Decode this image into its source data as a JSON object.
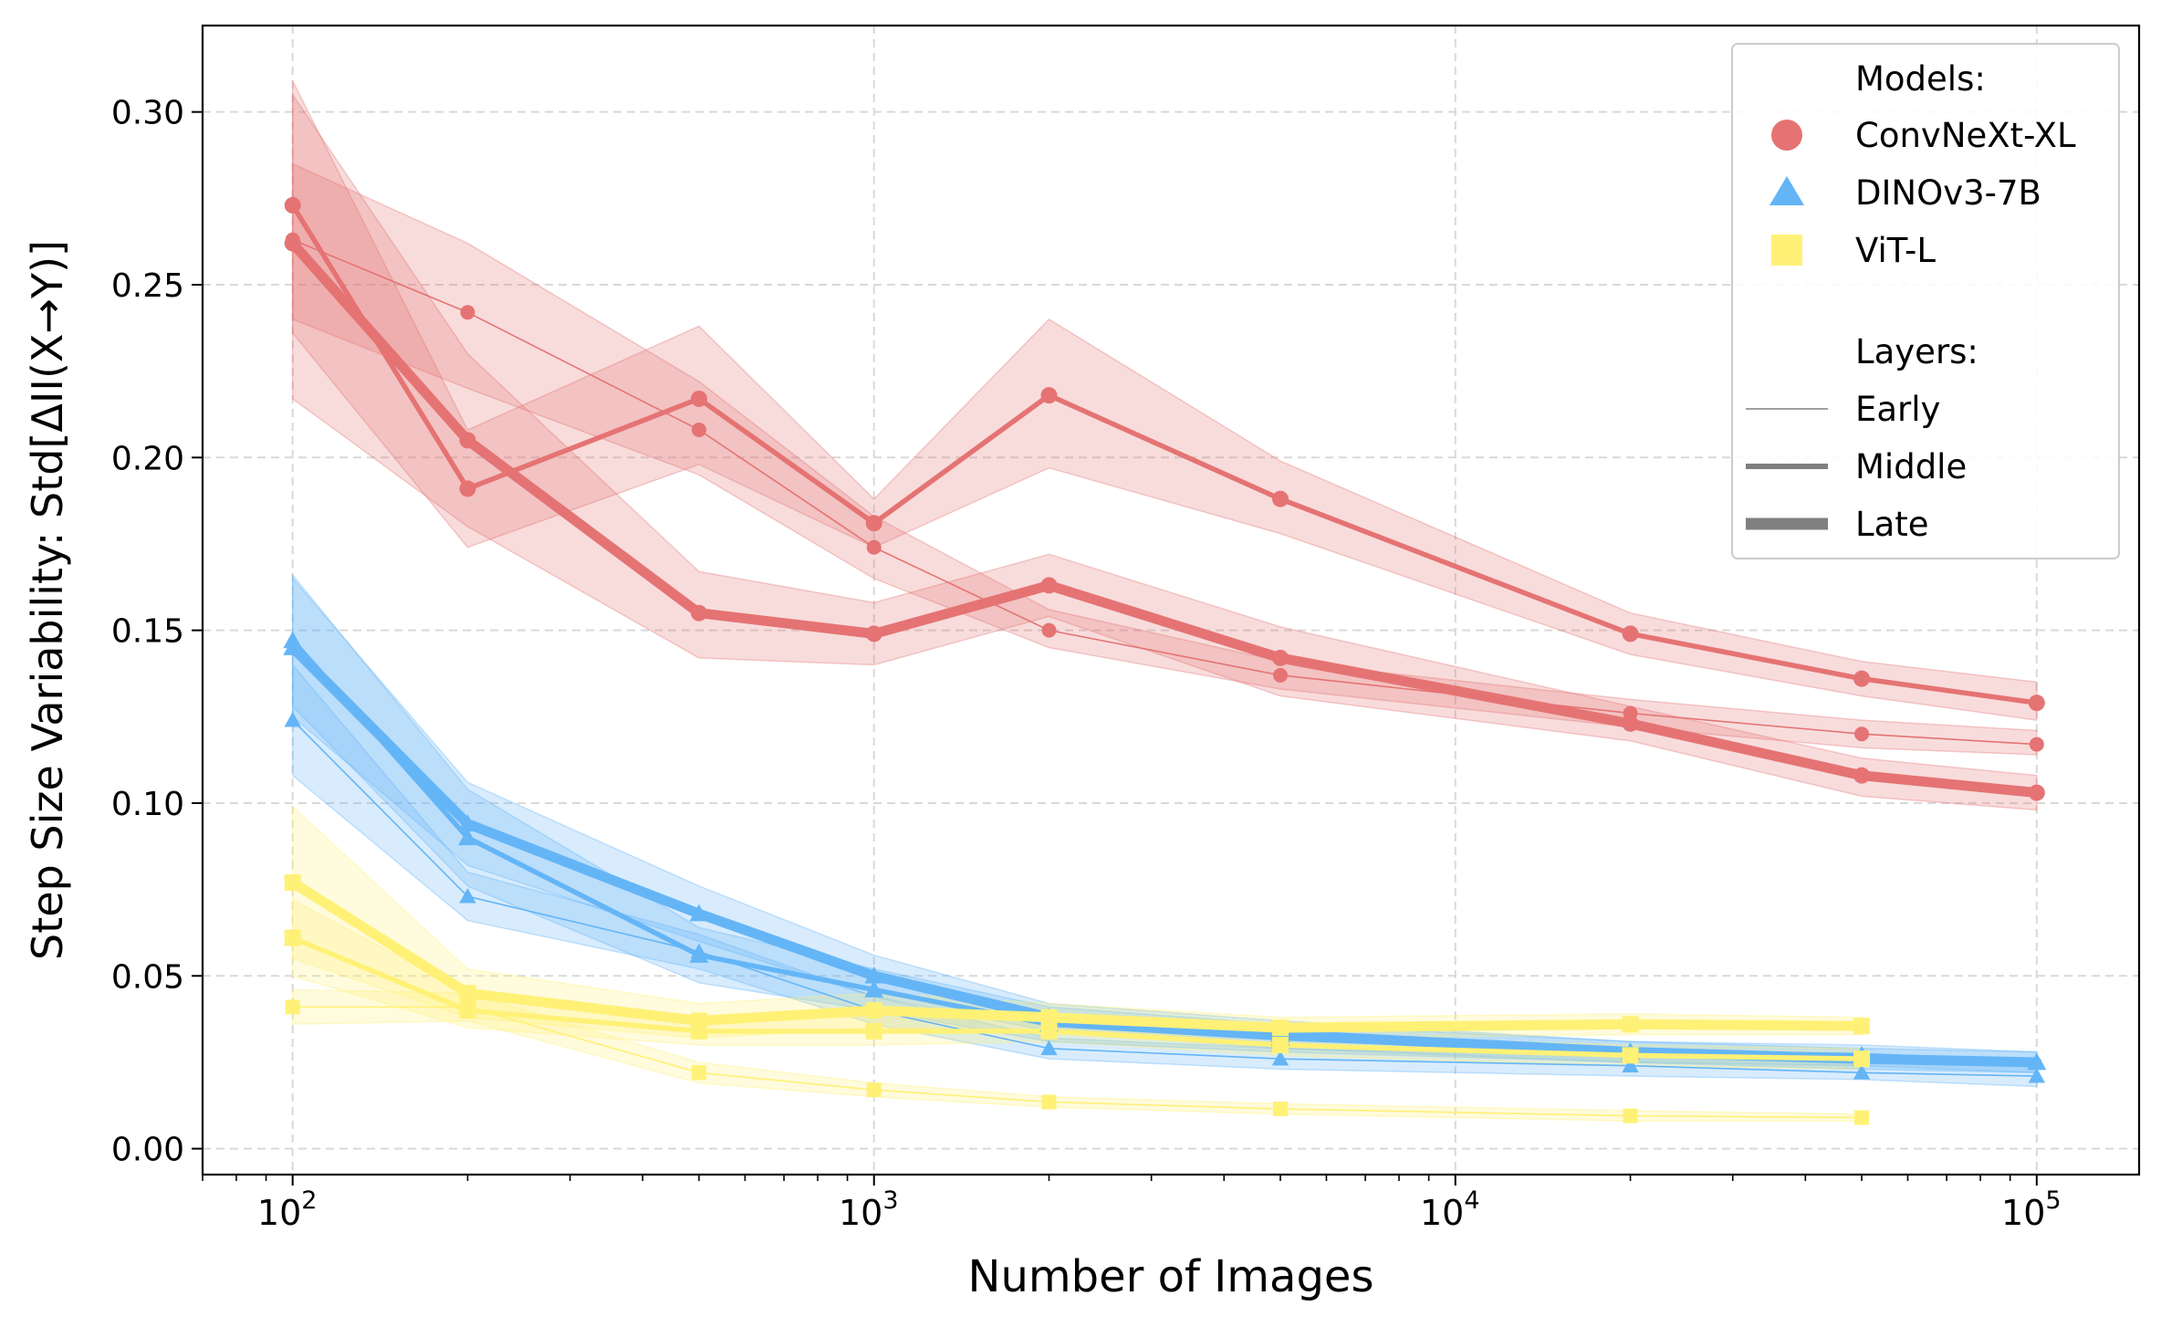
{
  "chart_data": {
    "type": "line",
    "xscale": "log",
    "xlabel": "Number of Images",
    "ylabel": "Step Size Variability: Std[ΔII(X→Y)]",
    "xlim": [
      70,
      150000
    ],
    "ylim": [
      -0.0075,
      0.325
    ],
    "grid": true,
    "x": [
      100,
      200,
      500,
      1000,
      2000,
      5000,
      20000,
      50000,
      100000
    ],
    "x_ticks": [
      {
        "value": 100,
        "base": "10",
        "exp": "2"
      },
      {
        "value": 1000,
        "base": "10",
        "exp": "3"
      },
      {
        "value": 10000,
        "base": "10",
        "exp": "4"
      },
      {
        "value": 100000,
        "base": "10",
        "exp": "5"
      }
    ],
    "y_ticks": [
      {
        "value": 0.0,
        "label": "0.00"
      },
      {
        "value": 0.05,
        "label": "0.05"
      },
      {
        "value": 0.1,
        "label": "0.10"
      },
      {
        "value": 0.15,
        "label": "0.15"
      },
      {
        "value": 0.2,
        "label": "0.20"
      },
      {
        "value": 0.25,
        "label": "0.25"
      },
      {
        "value": 0.3,
        "label": "0.30"
      }
    ],
    "legend": {
      "placement": "top-right",
      "models_title": "Models:",
      "models": [
        {
          "label": "ConvNeXt-XL",
          "marker": "circle",
          "color": "#e57373"
        },
        {
          "label": "DINOv3-7B",
          "marker": "triangle",
          "color": "#64b5f6"
        },
        {
          "label": "ViT-L",
          "marker": "square",
          "color": "#fff176"
        }
      ],
      "layers_title": "Layers:",
      "layers": [
        {
          "label": "Early",
          "width": "thin"
        },
        {
          "label": "Middle",
          "width": "medium"
        },
        {
          "label": "Late",
          "width": "thick"
        }
      ]
    },
    "series": [
      {
        "model": "ConvNeXt-XL",
        "layer": "Early",
        "marker": "circle",
        "color": "#e57373",
        "x": [
          100,
          200,
          500,
          1000,
          2000,
          5000,
          20000,
          50000,
          100000
        ],
        "values": [
          0.263,
          0.242,
          0.208,
          0.174,
          0.15,
          0.137,
          0.126,
          0.12,
          0.117
        ],
        "lower": [
          0.24,
          0.22,
          0.195,
          0.165,
          0.145,
          0.133,
          0.122,
          0.116,
          0.114
        ],
        "upper": [
          0.285,
          0.262,
          0.222,
          0.183,
          0.156,
          0.141,
          0.13,
          0.124,
          0.121
        ]
      },
      {
        "model": "ConvNeXt-XL",
        "layer": "Middle",
        "marker": "circle",
        "color": "#e57373",
        "x": [
          100,
          200,
          500,
          1000,
          2000,
          5000,
          20000,
          50000,
          100000
        ],
        "values": [
          0.273,
          0.191,
          0.217,
          0.181,
          0.218,
          0.188,
          0.149,
          0.136,
          0.129
        ],
        "lower": [
          0.236,
          0.174,
          0.198,
          0.174,
          0.197,
          0.178,
          0.143,
          0.131,
          0.124
        ],
        "upper": [
          0.309,
          0.208,
          0.238,
          0.188,
          0.24,
          0.199,
          0.155,
          0.141,
          0.135
        ]
      },
      {
        "model": "ConvNeXt-XL",
        "layer": "Late",
        "marker": "circle",
        "color": "#e57373",
        "x": [
          100,
          200,
          500,
          1000,
          2000,
          5000,
          20000,
          50000,
          100000
        ],
        "values": [
          0.262,
          0.205,
          0.155,
          0.149,
          0.163,
          0.142,
          0.123,
          0.108,
          0.103
        ],
        "lower": [
          0.217,
          0.18,
          0.142,
          0.14,
          0.154,
          0.131,
          0.118,
          0.102,
          0.098
        ],
        "upper": [
          0.305,
          0.23,
          0.167,
          0.158,
          0.172,
          0.151,
          0.128,
          0.113,
          0.108
        ]
      },
      {
        "model": "DINOv3-7B",
        "layer": "Early",
        "marker": "triangle",
        "color": "#64b5f6",
        "x": [
          100,
          200,
          500,
          1000,
          2000,
          5000,
          20000,
          50000,
          100000
        ],
        "values": [
          0.124,
          0.073,
          0.057,
          0.04,
          0.029,
          0.026,
          0.024,
          0.022,
          0.021
        ],
        "lower": [
          0.108,
          0.066,
          0.052,
          0.036,
          0.026,
          0.023,
          0.021,
          0.02,
          0.018
        ],
        "upper": [
          0.14,
          0.08,
          0.062,
          0.044,
          0.032,
          0.029,
          0.027,
          0.025,
          0.024
        ]
      },
      {
        "model": "DINOv3-7B",
        "layer": "Middle",
        "marker": "triangle",
        "color": "#64b5f6",
        "x": [
          100,
          200,
          500,
          1000,
          2000,
          5000,
          20000,
          50000,
          100000
        ],
        "values": [
          0.147,
          0.09,
          0.056,
          0.046,
          0.036,
          0.032,
          0.028,
          0.027,
          0.025
        ],
        "lower": [
          0.128,
          0.076,
          0.048,
          0.04,
          0.031,
          0.028,
          0.025,
          0.024,
          0.022
        ],
        "upper": [
          0.166,
          0.104,
          0.064,
          0.052,
          0.041,
          0.036,
          0.031,
          0.03,
          0.028
        ]
      },
      {
        "model": "DINOv3-7B",
        "layer": "Late",
        "marker": "triangle",
        "color": "#64b5f6",
        "x": [
          100,
          200,
          500,
          1000,
          2000,
          5000,
          20000,
          50000,
          100000
        ],
        "values": [
          0.145,
          0.094,
          0.068,
          0.05,
          0.038,
          0.033,
          0.028,
          0.026,
          0.025
        ],
        "lower": [
          0.125,
          0.082,
          0.06,
          0.044,
          0.034,
          0.029,
          0.025,
          0.023,
          0.022
        ],
        "upper": [
          0.165,
          0.106,
          0.076,
          0.056,
          0.042,
          0.037,
          0.031,
          0.029,
          0.028
        ]
      },
      {
        "model": "ViT-L",
        "layer": "Early",
        "marker": "square",
        "color": "#fff176",
        "x": [
          100,
          200,
          500,
          1000,
          2000,
          5000,
          20000,
          50000
        ],
        "values": [
          0.041,
          0.041,
          0.022,
          0.017,
          0.0135,
          0.0115,
          0.0095,
          0.009
        ],
        "lower": [
          0.036,
          0.037,
          0.019,
          0.015,
          0.012,
          0.01,
          0.008,
          0.008
        ],
        "upper": [
          0.046,
          0.045,
          0.025,
          0.019,
          0.015,
          0.013,
          0.011,
          0.01
        ]
      },
      {
        "model": "ViT-L",
        "layer": "Middle",
        "marker": "square",
        "color": "#fff176",
        "x": [
          100,
          200,
          500,
          1000,
          2000,
          5000,
          20000,
          50000
        ],
        "values": [
          0.061,
          0.04,
          0.034,
          0.034,
          0.034,
          0.03,
          0.027,
          0.026
        ],
        "lower": [
          0.05,
          0.035,
          0.03,
          0.03,
          0.031,
          0.027,
          0.024,
          0.023
        ],
        "upper": [
          0.072,
          0.045,
          0.038,
          0.038,
          0.037,
          0.033,
          0.03,
          0.029
        ]
      },
      {
        "model": "ViT-L",
        "layer": "Late",
        "marker": "square",
        "color": "#fff176",
        "x": [
          100,
          200,
          500,
          1000,
          2000,
          5000,
          20000,
          50000
        ],
        "values": [
          0.077,
          0.045,
          0.037,
          0.04,
          0.038,
          0.035,
          0.036,
          0.0355
        ],
        "lower": [
          0.055,
          0.038,
          0.032,
          0.035,
          0.034,
          0.032,
          0.033,
          0.033
        ],
        "upper": [
          0.099,
          0.052,
          0.042,
          0.045,
          0.042,
          0.038,
          0.039,
          0.038
        ]
      }
    ]
  }
}
